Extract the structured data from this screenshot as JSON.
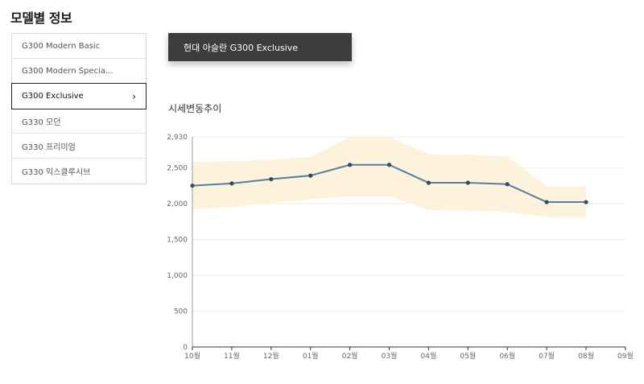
{
  "page": {
    "title": "모델별 정보"
  },
  "models": [
    {
      "label": "G300 Modern Basic",
      "active": false
    },
    {
      "label": "G300 Modern Specia...",
      "active": false
    },
    {
      "label": "G300 Exclusive",
      "active": true
    },
    {
      "label": "G330 모던",
      "active": false
    },
    {
      "label": "G330 프리미엄",
      "active": false
    },
    {
      "label": "G330 익스클루시브",
      "active": false
    }
  ],
  "selected_model": "현대 아슬란 G300 Exclusive",
  "chart_title": "시세변동추이",
  "colors": {
    "line": "#5b7e9b",
    "band": "#fdf3dc",
    "grid": "#ececec",
    "dark": "#3d3d3d"
  },
  "chart_data": {
    "type": "line",
    "title": "시세변동추이",
    "categories": [
      "10월",
      "11월",
      "12월",
      "01월",
      "02월",
      "03월",
      "04월",
      "05월",
      "06월",
      "07월",
      "08월",
      "09월"
    ],
    "ylim": [
      0,
      2930
    ],
    "yticks": [
      "2,930",
      "2,500",
      "2,000",
      "1,500",
      "1,000",
      "500",
      "0"
    ],
    "ytick_values": [
      2930,
      2500,
      2000,
      1500,
      1000,
      500,
      0
    ],
    "series": [
      {
        "values": [
          2250,
          2280,
          2340,
          2390,
          2540,
          2540,
          2290,
          2290,
          2270,
          2020,
          2020,
          null
        ]
      }
    ],
    "range_band": {
      "upper": [
        2580,
        2590,
        2610,
        2650,
        2930,
        2930,
        2690,
        2680,
        2660,
        2240,
        2240
      ],
      "lower": [
        1920,
        1950,
        2010,
        2060,
        2100,
        2100,
        1910,
        1900,
        1880,
        1810,
        1810
      ]
    },
    "grid": true
  }
}
